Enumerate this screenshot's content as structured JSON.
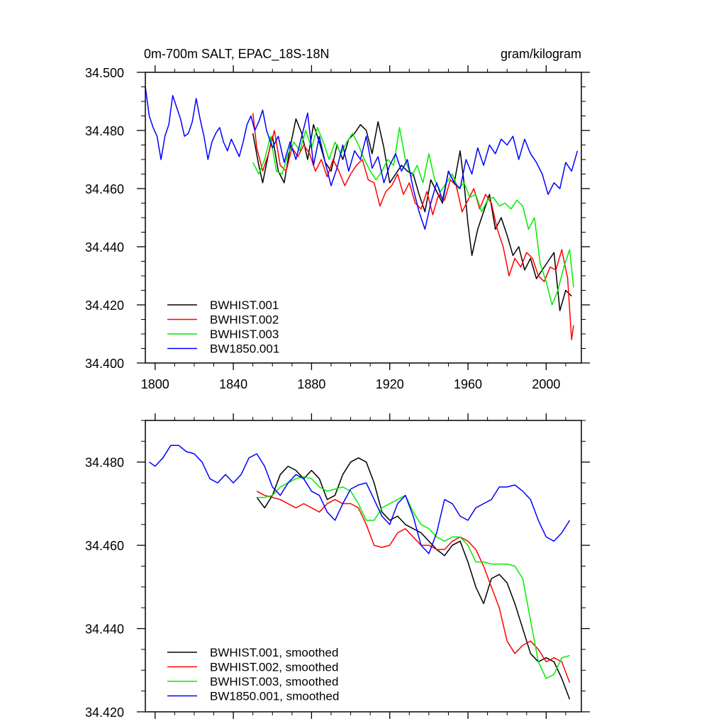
{
  "chart_data": [
    {
      "type": "line",
      "title": "0m-700m SALT, EPAC_18S-18N",
      "units": "gram/kilogram",
      "xlabel": "",
      "ylabel": "",
      "xlim": [
        1795,
        2018
      ],
      "ylim": [
        34.4,
        34.5
      ],
      "x_ticks": [
        1800,
        1840,
        1880,
        1920,
        1960,
        2000
      ],
      "x_tick_labels": [
        "1800",
        "1840",
        "1880",
        "1920",
        "1960",
        "2000"
      ],
      "y_ticks": [
        34.4,
        34.42,
        34.44,
        34.46,
        34.48,
        34.5
      ],
      "y_tick_labels": [
        "34.400",
        "34.420",
        "34.440",
        "34.460",
        "34.480",
        "34.500"
      ],
      "legend_position": "bottom-left",
      "grid": false,
      "series": [
        {
          "name": "BWHIST.001",
          "color": "#000000",
          "x": [
            1850,
            1853,
            1855,
            1858,
            1860,
            1863,
            1866,
            1869,
            1872,
            1875,
            1878,
            1881,
            1884,
            1887,
            1890,
            1893,
            1896,
            1899,
            1902,
            1905,
            1908,
            1911,
            1914,
            1917,
            1920,
            1923,
            1926,
            1929,
            1932,
            1935,
            1938,
            1941,
            1944,
            1947,
            1950,
            1953,
            1956,
            1958,
            1960,
            1962,
            1965,
            1968,
            1971,
            1974,
            1977,
            1980,
            1983,
            1986,
            1989,
            1992,
            1995,
            1998,
            2001,
            2004,
            2007,
            2010,
            2013
          ],
          "values": [
            34.479,
            34.468,
            34.462,
            34.472,
            34.478,
            34.466,
            34.462,
            34.474,
            34.484,
            34.479,
            34.47,
            34.482,
            34.476,
            34.469,
            34.466,
            34.475,
            34.47,
            34.477,
            34.479,
            34.482,
            34.48,
            34.472,
            34.483,
            34.474,
            34.462,
            34.465,
            34.468,
            34.466,
            34.465,
            34.458,
            34.452,
            34.463,
            34.459,
            34.455,
            34.466,
            34.462,
            34.473,
            34.462,
            34.448,
            34.437,
            34.446,
            34.452,
            34.458,
            34.446,
            34.45,
            34.444,
            34.437,
            34.44,
            34.432,
            34.436,
            34.429,
            34.432,
            34.435,
            34.438,
            34.418,
            34.425,
            34.423
          ]
        },
        {
          "name": "BWHIST.002",
          "color": "#ff0000",
          "x": [
            1850,
            1852,
            1855,
            1858,
            1861,
            1864,
            1867,
            1870,
            1873,
            1876,
            1879,
            1882,
            1885,
            1888,
            1891,
            1894,
            1897,
            1900,
            1903,
            1906,
            1909,
            1912,
            1915,
            1918,
            1921,
            1924,
            1927,
            1930,
            1933,
            1936,
            1939,
            1942,
            1945,
            1948,
            1951,
            1954,
            1957,
            1960,
            1963,
            1966,
            1969,
            1972,
            1975,
            1978,
            1981,
            1984,
            1987,
            1990,
            1993,
            1996,
            1999,
            2002,
            2005,
            2008,
            2011,
            2013,
            2014
          ],
          "values": [
            34.486,
            34.474,
            34.466,
            34.472,
            34.48,
            34.468,
            34.466,
            34.474,
            34.471,
            34.475,
            34.472,
            34.466,
            34.47,
            34.464,
            34.47,
            34.466,
            34.461,
            34.465,
            34.468,
            34.47,
            34.463,
            34.462,
            34.454,
            34.459,
            34.461,
            34.465,
            34.458,
            34.462,
            34.455,
            34.453,
            34.459,
            34.451,
            34.458,
            34.456,
            34.463,
            34.461,
            34.452,
            34.456,
            34.46,
            34.453,
            34.458,
            34.455,
            34.446,
            34.44,
            34.43,
            34.436,
            34.433,
            34.438,
            34.436,
            34.43,
            34.428,
            34.433,
            34.432,
            34.439,
            34.429,
            34.408,
            34.413
          ]
        },
        {
          "name": "BWHIST.003",
          "color": "#00ee00",
          "x": [
            1850,
            1853,
            1856,
            1859,
            1862,
            1865,
            1868,
            1871,
            1874,
            1877,
            1880,
            1883,
            1886,
            1889,
            1892,
            1895,
            1898,
            1901,
            1904,
            1907,
            1910,
            1913,
            1916,
            1919,
            1922,
            1925,
            1928,
            1931,
            1934,
            1937,
            1940,
            1943,
            1946,
            1949,
            1952,
            1955,
            1958,
            1961,
            1964,
            1967,
            1970,
            1973,
            1976,
            1979,
            1982,
            1985,
            1988,
            1991,
            1994,
            1997,
            2000,
            2003,
            2006,
            2009,
            2012,
            2014
          ],
          "values": [
            34.469,
            34.465,
            34.47,
            34.478,
            34.466,
            34.465,
            34.472,
            34.476,
            34.473,
            34.48,
            34.474,
            34.481,
            34.476,
            34.47,
            34.476,
            34.472,
            34.476,
            34.479,
            34.475,
            34.47,
            34.466,
            34.463,
            34.466,
            34.47,
            34.468,
            34.481,
            34.47,
            34.464,
            34.468,
            34.462,
            34.472,
            34.463,
            34.459,
            34.462,
            34.465,
            34.46,
            34.462,
            34.457,
            34.458,
            34.452,
            34.456,
            34.457,
            34.454,
            34.455,
            34.453,
            34.456,
            34.454,
            34.446,
            34.45,
            34.434,
            34.428,
            34.42,
            34.425,
            34.433,
            34.439,
            34.426
          ]
        },
        {
          "name": "BW1850.001",
          "color": "#0000ff",
          "x": [
            1795,
            1797,
            1799,
            1801,
            1803,
            1805,
            1807,
            1809,
            1811,
            1813,
            1815,
            1817,
            1819,
            1821,
            1823,
            1825,
            1827,
            1829,
            1831,
            1833,
            1835,
            1837,
            1839,
            1841,
            1843,
            1845,
            1847,
            1849,
            1851,
            1853,
            1855,
            1857,
            1860,
            1863,
            1866,
            1869,
            1872,
            1875,
            1878,
            1881,
            1884,
            1887,
            1890,
            1893,
            1896,
            1899,
            1902,
            1905,
            1908,
            1911,
            1914,
            1917,
            1920,
            1923,
            1926,
            1929,
            1932,
            1935,
            1938,
            1941,
            1944,
            1947,
            1950,
            1953,
            1956,
            1959,
            1962,
            1965,
            1968,
            1971,
            1974,
            1977,
            1980,
            1983,
            1986,
            1989,
            1992,
            1995,
            1998,
            2001,
            2004,
            2007,
            2010,
            2013,
            2016
          ],
          "values": [
            34.495,
            34.485,
            34.481,
            34.478,
            34.47,
            34.478,
            34.482,
            34.492,
            34.488,
            34.484,
            34.478,
            34.479,
            34.483,
            34.491,
            34.484,
            34.478,
            34.47,
            34.476,
            34.479,
            34.481,
            34.476,
            34.473,
            34.477,
            34.474,
            34.471,
            34.476,
            34.482,
            34.485,
            34.48,
            34.483,
            34.487,
            34.48,
            34.474,
            34.478,
            34.469,
            34.476,
            34.47,
            34.478,
            34.486,
            34.468,
            34.478,
            34.469,
            34.461,
            34.467,
            34.475,
            34.466,
            34.473,
            34.47,
            34.478,
            34.467,
            34.471,
            34.462,
            34.468,
            34.472,
            34.466,
            34.47,
            34.46,
            34.452,
            34.446,
            34.455,
            34.462,
            34.456,
            34.466,
            34.462,
            34.46,
            34.47,
            34.465,
            34.474,
            34.468,
            34.475,
            34.472,
            34.477,
            34.475,
            34.478,
            34.47,
            34.477,
            34.472,
            34.469,
            34.465,
            34.458,
            34.462,
            34.46,
            34.469,
            34.466,
            34.473
          ]
        }
      ]
    },
    {
      "type": "line",
      "title": "",
      "xlabel": "",
      "ylabel": "",
      "xlim": [
        1795,
        2018
      ],
      "ylim": [
        34.42,
        34.49
      ],
      "x_ticks": [
        1800,
        1840,
        1880,
        1920,
        1960,
        2000
      ],
      "y_ticks": [
        34.42,
        34.44,
        34.46,
        34.48
      ],
      "y_tick_labels": [
        "34.420",
        "34.440",
        "34.460",
        "34.480"
      ],
      "legend_position": "bottom-left",
      "grid": false,
      "series": [
        {
          "name": "BWHIST.001, smoothed",
          "color": "#000000",
          "x": [
            1852,
            1856,
            1860,
            1864,
            1868,
            1872,
            1876,
            1880,
            1884,
            1888,
            1892,
            1896,
            1900,
            1904,
            1908,
            1912,
            1916,
            1920,
            1924,
            1928,
            1932,
            1936,
            1940,
            1944,
            1948,
            1952,
            1956,
            1960,
            1964,
            1968,
            1972,
            1976,
            1980,
            1984,
            1988,
            1992,
            1996,
            2000,
            2004,
            2008,
            2012
          ],
          "values": [
            34.4715,
            34.469,
            34.472,
            34.477,
            34.479,
            34.478,
            34.476,
            34.478,
            34.476,
            34.471,
            34.472,
            34.477,
            34.48,
            34.481,
            34.48,
            34.475,
            34.468,
            34.466,
            34.467,
            34.465,
            34.464,
            34.463,
            34.461,
            34.459,
            34.4575,
            34.46,
            34.461,
            34.456,
            34.45,
            34.446,
            34.452,
            34.453,
            34.451,
            34.446,
            34.44,
            34.434,
            34.432,
            34.433,
            34.432,
            34.428,
            34.423
          ]
        },
        {
          "name": "BWHIST.002, smoothed",
          "color": "#ff0000",
          "x": [
            1852,
            1856,
            1860,
            1864,
            1868,
            1872,
            1876,
            1880,
            1884,
            1888,
            1892,
            1896,
            1900,
            1904,
            1908,
            1912,
            1916,
            1920,
            1924,
            1928,
            1932,
            1936,
            1940,
            1944,
            1948,
            1952,
            1956,
            1960,
            1964,
            1968,
            1972,
            1976,
            1980,
            1984,
            1988,
            1992,
            1996,
            2000,
            2004,
            2008,
            2012
          ],
          "values": [
            34.473,
            34.472,
            34.4715,
            34.471,
            34.47,
            34.469,
            34.47,
            34.469,
            34.468,
            34.47,
            34.471,
            34.47,
            34.47,
            34.469,
            34.465,
            34.46,
            34.4595,
            34.46,
            34.463,
            34.464,
            34.462,
            34.46,
            34.46,
            34.459,
            34.459,
            34.461,
            34.462,
            34.461,
            34.459,
            34.455,
            34.45,
            34.445,
            34.437,
            34.434,
            34.436,
            34.437,
            34.435,
            34.432,
            34.433,
            34.432,
            34.427
          ]
        },
        {
          "name": "BWHIST.003, smoothed",
          "color": "#00ee00",
          "x": [
            1852,
            1856,
            1860,
            1864,
            1868,
            1872,
            1876,
            1880,
            1884,
            1888,
            1892,
            1896,
            1900,
            1904,
            1908,
            1912,
            1916,
            1920,
            1924,
            1928,
            1932,
            1936,
            1940,
            1944,
            1948,
            1952,
            1956,
            1960,
            1964,
            1968,
            1972,
            1976,
            1980,
            1984,
            1988,
            1992,
            1996,
            2000,
            2004,
            2008,
            2012
          ],
          "values": [
            34.4715,
            34.4715,
            34.472,
            34.474,
            34.475,
            34.476,
            34.4765,
            34.476,
            34.474,
            34.473,
            34.4735,
            34.474,
            34.473,
            34.47,
            34.466,
            34.466,
            34.469,
            34.47,
            34.471,
            34.472,
            34.468,
            34.465,
            34.464,
            34.462,
            34.461,
            34.462,
            34.462,
            34.46,
            34.456,
            34.456,
            34.4555,
            34.4555,
            34.4555,
            34.455,
            34.452,
            34.442,
            34.432,
            34.428,
            34.429,
            34.433,
            34.4335
          ]
        },
        {
          "name": "BW1850.001, smoothed",
          "color": "#0000ff",
          "x": [
            1797,
            1800,
            1804,
            1808,
            1812,
            1816,
            1820,
            1824,
            1828,
            1832,
            1836,
            1840,
            1844,
            1848,
            1852,
            1856,
            1860,
            1864,
            1868,
            1872,
            1876,
            1880,
            1884,
            1888,
            1892,
            1896,
            1900,
            1904,
            1908,
            1912,
            1916,
            1920,
            1924,
            1928,
            1932,
            1936,
            1940,
            1944,
            1948,
            1952,
            1956,
            1960,
            1964,
            1968,
            1972,
            1976,
            1980,
            1984,
            1988,
            1992,
            1996,
            2000,
            2004,
            2008,
            2012
          ],
          "values": [
            34.48,
            34.479,
            34.481,
            34.484,
            34.484,
            34.4825,
            34.482,
            34.48,
            34.476,
            34.475,
            34.477,
            34.475,
            34.477,
            34.481,
            34.482,
            34.479,
            34.474,
            34.472,
            34.475,
            34.477,
            34.476,
            34.473,
            34.472,
            34.468,
            34.466,
            34.47,
            34.4735,
            34.4745,
            34.475,
            34.471,
            34.467,
            34.465,
            34.47,
            34.472,
            34.467,
            34.46,
            34.458,
            34.463,
            34.471,
            34.47,
            34.467,
            34.466,
            34.469,
            34.47,
            34.471,
            34.474,
            34.474,
            34.4745,
            34.473,
            34.471,
            34.466,
            34.462,
            34.461,
            34.463,
            34.466
          ]
        }
      ]
    }
  ]
}
